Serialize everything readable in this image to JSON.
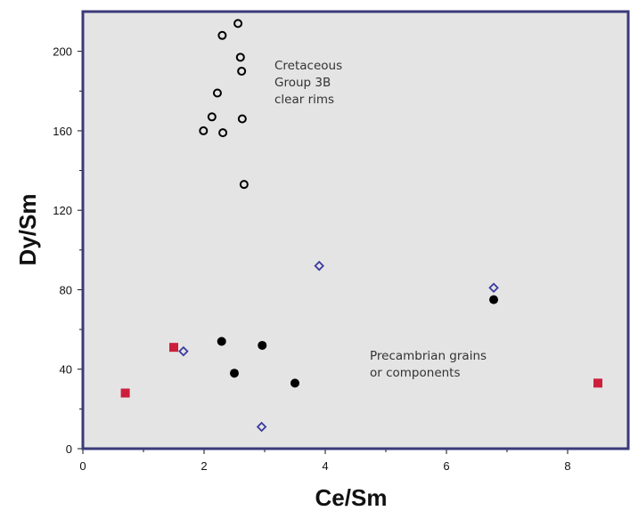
{
  "chart_data": {
    "type": "scatter",
    "title": "",
    "xlabel": "Ce/Sm",
    "ylabel": "Dy/Sm",
    "xlim": [
      0,
      9
    ],
    "ylim": [
      0,
      220
    ],
    "xticks": [
      0,
      2,
      4,
      6,
      8
    ],
    "yticks": [
      0,
      40,
      80,
      120,
      160,
      200
    ],
    "grid": false,
    "background": "#e4e4e4",
    "frame_color": "#3a3a7a",
    "series": [
      {
        "marker": "open-circle",
        "color": "#000000",
        "points": [
          [
            2.56,
            214
          ],
          [
            2.3,
            208
          ],
          [
            2.6,
            197
          ],
          [
            2.62,
            190
          ],
          [
            2.22,
            179
          ],
          [
            2.13,
            167
          ],
          [
            2.63,
            166
          ],
          [
            1.99,
            160
          ],
          [
            2.31,
            159
          ],
          [
            2.66,
            133
          ]
        ]
      },
      {
        "marker": "filled-circle",
        "color": "#000000",
        "points": [
          [
            2.29,
            54
          ],
          [
            2.96,
            52
          ],
          [
            2.5,
            38
          ],
          [
            3.5,
            33
          ],
          [
            6.78,
            75
          ]
        ]
      },
      {
        "marker": "open-diamond",
        "color": "#3a3aa0",
        "points": [
          [
            1.66,
            49
          ],
          [
            3.9,
            92
          ],
          [
            2.95,
            11
          ],
          [
            6.78,
            81
          ]
        ]
      },
      {
        "marker": "filled-square",
        "color": "#cc1f3c",
        "points": [
          [
            0.7,
            28
          ],
          [
            1.5,
            51
          ],
          [
            8.5,
            33
          ]
        ]
      }
    ],
    "annotations": [
      {
        "lines": [
          "Cretaceous",
          "Group 3B",
          "clear rims"
        ]
      },
      {
        "lines": [
          "Precambrian grains",
          "or components"
        ]
      }
    ]
  }
}
